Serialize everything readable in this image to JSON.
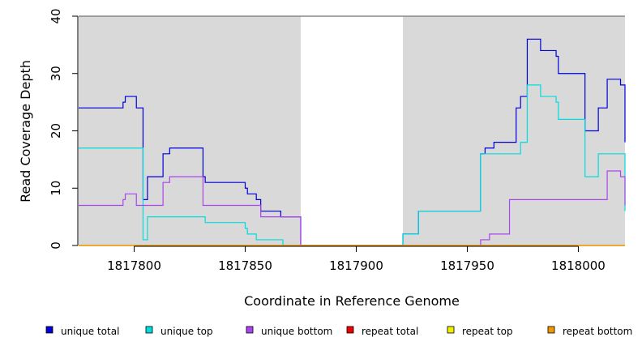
{
  "chart_data": {
    "type": "line",
    "step": true,
    "xlabel": "Coordinate in Reference Genome",
    "ylabel": "Read Coverage Depth",
    "xlim": [
      1817775,
      1818021
    ],
    "ylim": [
      0,
      40
    ],
    "x_ticks": [
      1817800,
      1817850,
      1817900,
      1817950,
      1818000
    ],
    "y_ticks": [
      0,
      10,
      20,
      30,
      40
    ],
    "shaded_regions": [
      [
        1817775,
        1817875
      ],
      [
        1817921,
        1818021
      ]
    ],
    "legend_position": "bottom",
    "series": [
      {
        "name": "unique total",
        "color": "#0000dd",
        "points": [
          [
            1817775,
            24
          ],
          [
            1817795,
            25
          ],
          [
            1817796,
            26
          ],
          [
            1817801,
            24
          ],
          [
            1817804,
            8
          ],
          [
            1817806,
            12
          ],
          [
            1817813,
            16
          ],
          [
            1817816,
            17
          ],
          [
            1817831,
            12
          ],
          [
            1817832,
            11
          ],
          [
            1817850,
            10
          ],
          [
            1817851,
            9
          ],
          [
            1817855,
            8
          ],
          [
            1817857,
            6
          ],
          [
            1817866,
            5
          ],
          [
            1817875,
            0
          ],
          [
            1817921,
            2
          ],
          [
            1817928,
            6
          ],
          [
            1817956,
            16
          ],
          [
            1817958,
            17
          ],
          [
            1817962,
            18
          ],
          [
            1817972,
            24
          ],
          [
            1817974,
            26
          ],
          [
            1817977,
            36
          ],
          [
            1817983,
            34
          ],
          [
            1817990,
            33
          ],
          [
            1817991,
            30
          ],
          [
            1818003,
            20
          ],
          [
            1818009,
            24
          ],
          [
            1818013,
            29
          ],
          [
            1818019,
            28
          ],
          [
            1818021,
            18
          ]
        ]
      },
      {
        "name": "unique top",
        "color": "#00dddd",
        "points": [
          [
            1817775,
            17
          ],
          [
            1817804,
            1
          ],
          [
            1817806,
            5
          ],
          [
            1817831,
            5
          ],
          [
            1817832,
            4
          ],
          [
            1817850,
            3
          ],
          [
            1817851,
            2
          ],
          [
            1817855,
            1
          ],
          [
            1817867,
            0
          ],
          [
            1817921,
            2
          ],
          [
            1817928,
            6
          ],
          [
            1817956,
            16
          ],
          [
            1817974,
            18
          ],
          [
            1817977,
            28
          ],
          [
            1817983,
            26
          ],
          [
            1817990,
            25
          ],
          [
            1817991,
            22
          ],
          [
            1818003,
            12
          ],
          [
            1818009,
            16
          ],
          [
            1818021,
            6
          ]
        ]
      },
      {
        "name": "unique bottom",
        "color": "#aa44ee",
        "points": [
          [
            1817775,
            7
          ],
          [
            1817795,
            8
          ],
          [
            1817796,
            9
          ],
          [
            1817801,
            7
          ],
          [
            1817813,
            11
          ],
          [
            1817816,
            12
          ],
          [
            1817831,
            7
          ],
          [
            1817857,
            5
          ],
          [
            1817875,
            0
          ],
          [
            1817956,
            1
          ],
          [
            1817960,
            2
          ],
          [
            1817969,
            8
          ],
          [
            1818013,
            13
          ],
          [
            1818019,
            12
          ],
          [
            1818021,
            7
          ]
        ]
      },
      {
        "name": "repeat total",
        "color": "#ee0000",
        "points": [
          [
            1817775,
            0
          ],
          [
            1818021,
            0
          ]
        ]
      },
      {
        "name": "repeat top",
        "color": "#eeee00",
        "points": [
          [
            1817775,
            0
          ],
          [
            1818021,
            0
          ]
        ]
      },
      {
        "name": "repeat bottom",
        "color": "#ee9900",
        "points": [
          [
            1817775,
            0
          ],
          [
            1818021,
            0
          ]
        ]
      }
    ]
  },
  "legend": [
    {
      "label": "unique total",
      "color": "#0000dd"
    },
    {
      "label": "unique top",
      "color": "#00dddd"
    },
    {
      "label": "unique bottom",
      "color": "#aa44ee"
    },
    {
      "label": "repeat total",
      "color": "#ee0000"
    },
    {
      "label": "repeat top",
      "color": "#eeee00"
    },
    {
      "label": "repeat bottom",
      "color": "#ee9900"
    }
  ]
}
